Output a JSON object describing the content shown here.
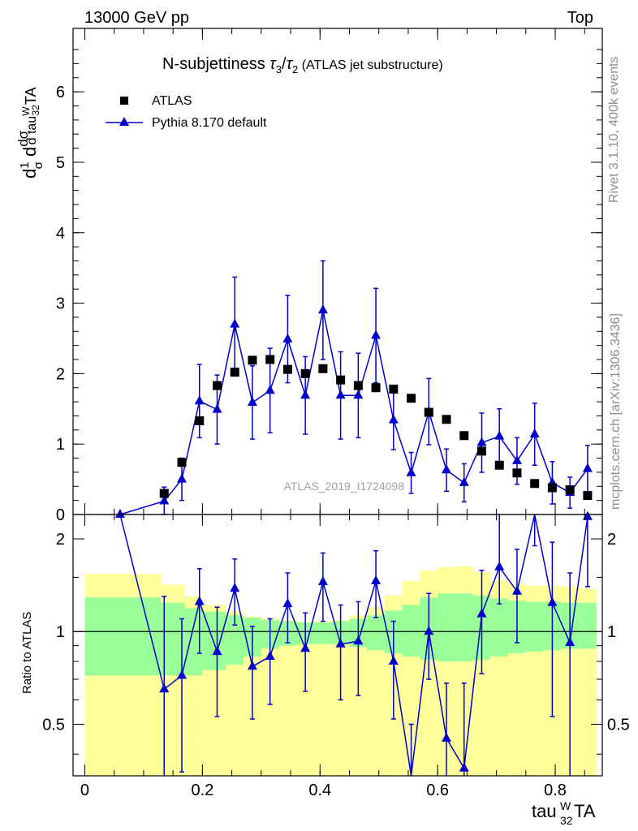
{
  "header": {
    "left": "13000 GeV pp",
    "right": "Top"
  },
  "side_text": {
    "rivet": "Rivet 3.1.10,  400k events",
    "mcplots": "mcplots.cern.ch [arXiv:1306.3436]"
  },
  "main_plot": {
    "title": "N-subjettiness τ3/τ2 (ATLAS jet substructure)",
    "ylabel": "1/σ dσ/d tau_32^W TA",
    "watermark": "ATLAS_2019_I1724098",
    "legend": [
      {
        "name": "ATLAS",
        "marker": "square",
        "color": "#000000"
      },
      {
        "name": "Pythia 8.170 default",
        "marker": "triangle",
        "color": "#0000cc"
      }
    ]
  },
  "ratio_plot": {
    "ylabel": "Ratio to ATLAS"
  },
  "xaxis": {
    "label": "tau_32^W TA"
  },
  "chart_data": {
    "type": "scatter",
    "x_range": [
      -0.02,
      0.88
    ],
    "main": {
      "ylim": [
        0,
        6.9
      ],
      "yticks": [
        0,
        1,
        2,
        3,
        4,
        5,
        6
      ],
      "series": [
        {
          "name": "ATLAS",
          "x": [
            0.06,
            0.135,
            0.165,
            0.195,
            0.225,
            0.255,
            0.285,
            0.315,
            0.345,
            0.375,
            0.405,
            0.435,
            0.465,
            0.495,
            0.525,
            0.555,
            0.585,
            0.615,
            0.645,
            0.675,
            0.705,
            0.735,
            0.765,
            0.795,
            0.825,
            0.855
          ],
          "y": [
            0.0,
            0.3,
            0.74,
            1.33,
            1.83,
            2.02,
            2.19,
            2.2,
            2.06,
            2.0,
            2.07,
            1.91,
            1.83,
            1.8,
            1.78,
            1.65,
            1.45,
            1.35,
            1.12,
            0.9,
            0.7,
            0.59,
            0.44,
            0.38,
            0.35,
            0.27
          ]
        },
        {
          "name": "Pythia 8.170 default",
          "x": [
            0.06,
            0.135,
            0.165,
            0.195,
            0.225,
            0.255,
            0.285,
            0.315,
            0.345,
            0.375,
            0.405,
            0.435,
            0.465,
            0.495,
            0.525,
            0.555,
            0.585,
            0.615,
            0.645,
            0.675,
            0.705,
            0.735,
            0.765,
            0.795,
            0.825,
            0.855
          ],
          "y": [
            0.0,
            0.19,
            0.5,
            1.61,
            1.49,
            2.7,
            1.59,
            1.76,
            2.49,
            1.69,
            2.9,
            1.69,
            1.69,
            2.54,
            1.34,
            0.59,
            1.46,
            0.63,
            0.45,
            1.02,
            1.11,
            0.76,
            1.14,
            0.45,
            0.31,
            0.65
          ],
          "yerr": [
            0.0,
            0.2,
            0.3,
            0.52,
            0.49,
            0.67,
            0.52,
            0.6,
            0.62,
            0.55,
            0.7,
            0.62,
            0.6,
            0.67,
            0.42,
            0.29,
            0.47,
            0.3,
            0.27,
            0.42,
            0.39,
            0.33,
            0.44,
            0.3,
            0.22,
            0.33
          ]
        }
      ]
    },
    "ratio": {
      "ylim": [
        0.34,
        2.4
      ],
      "log_scale": true,
      "yticks": [
        0.5,
        1,
        2
      ],
      "reference_line": 1,
      "series": [
        {
          "name": "Pythia 8.170 default",
          "x": [
            0.06,
            0.135,
            0.165,
            0.195,
            0.225,
            0.255,
            0.285,
            0.315,
            0.345,
            0.375,
            0.405,
            0.435,
            0.465,
            0.495,
            0.525,
            0.555,
            0.585,
            0.615,
            0.645,
            0.675,
            0.705,
            0.735,
            0.765,
            0.795,
            0.825,
            0.855
          ],
          "y": [
            2.6,
            0.65,
            0.72,
            1.25,
            0.86,
            1.38,
            0.77,
            0.83,
            1.23,
            0.88,
            1.45,
            0.91,
            0.93,
            1.46,
            0.8,
            0.3,
            1.0,
            0.45,
            0.36,
            1.14,
            1.62,
            1.35,
            2.6,
            1.24,
            0.92,
            2.36
          ],
          "ylow": [
            2.6,
            0.3,
            0.35,
            0.85,
            0.53,
            1.05,
            0.52,
            0.58,
            0.92,
            0.64,
            1.08,
            0.6,
            0.62,
            1.11,
            0.52,
            0.2,
            0.7,
            0.32,
            0.2,
            0.73,
            1.23,
            0.92,
            1.9,
            0.53,
            0.3,
            1.4
          ],
          "yhigh": [
            2.6,
            1.3,
            1.1,
            1.6,
            1.2,
            1.72,
            1.04,
            1.1,
            1.55,
            1.15,
            1.8,
            1.22,
            1.25,
            1.83,
            1.08,
            0.5,
            1.33,
            0.68,
            0.68,
            1.58,
            2.4,
            1.85,
            3.0,
            1.95,
            1.55,
            3.0
          ]
        }
      ],
      "bands": {
        "edges": [
          0.0,
          0.1,
          0.13,
          0.17,
          0.2,
          0.24,
          0.27,
          0.3,
          0.33,
          0.36,
          0.39,
          0.42,
          0.45,
          0.48,
          0.51,
          0.54,
          0.57,
          0.6,
          0.63,
          0.66,
          0.69,
          0.72,
          0.75,
          0.78,
          0.81,
          0.84,
          0.87
        ],
        "yellow_low": [
          0.3,
          0.3,
          0.3,
          0.3,
          0.3,
          0.3,
          0.3,
          0.3,
          0.3,
          0.3,
          0.3,
          0.3,
          0.3,
          0.3,
          0.3,
          0.3,
          0.3,
          0.3,
          0.3,
          0.3,
          0.3,
          0.3,
          0.3,
          0.3,
          0.3,
          0.3
        ],
        "yellow_lowq": [
          0.69,
          0.69,
          0.6,
          0.45,
          0.44,
          0.53,
          0.66,
          0.74,
          0.8,
          0.84,
          0.87,
          0.87,
          0.84,
          0.8,
          0.76,
          0.78,
          0.74,
          0.73,
          0.69,
          0.67,
          0.67,
          0.69,
          0.71,
          0.71,
          0.72,
          0.72
        ],
        "yellow_high": [
          1.54,
          1.54,
          1.42,
          1.3,
          1.22,
          1.16,
          1.12,
          1.1,
          1.09,
          1.08,
          1.08,
          1.09,
          1.13,
          1.2,
          1.31,
          1.46,
          1.58,
          1.62,
          1.63,
          1.56,
          1.47,
          1.43,
          1.41,
          1.41,
          1.4,
          1.38
        ],
        "green_low": [
          0.72,
          0.72,
          0.72,
          0.72,
          0.75,
          0.78,
          0.83,
          0.88,
          0.9,
          0.91,
          0.91,
          0.91,
          0.89,
          0.87,
          0.85,
          0.83,
          0.81,
          0.8,
          0.8,
          0.81,
          0.83,
          0.85,
          0.86,
          0.87,
          0.88,
          0.88
        ],
        "green_high": [
          1.29,
          1.29,
          1.24,
          1.19,
          1.16,
          1.13,
          1.11,
          1.09,
          1.08,
          1.07,
          1.07,
          1.08,
          1.1,
          1.13,
          1.17,
          1.22,
          1.29,
          1.33,
          1.33,
          1.31,
          1.28,
          1.26,
          1.25,
          1.25,
          1.24,
          1.24
        ]
      }
    },
    "xticks": [
      0,
      0.2,
      0.4,
      0.6,
      0.8
    ],
    "colors": {
      "data": "#000000",
      "mc": "#0000cc",
      "band_yellow": "#ffff99",
      "band_green": "#99ff99"
    }
  }
}
